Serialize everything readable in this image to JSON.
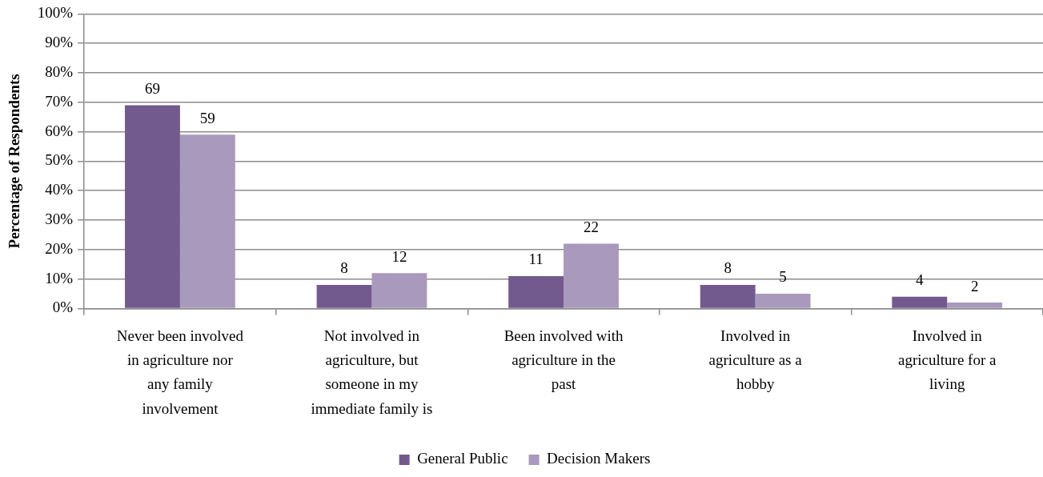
{
  "chart_data": {
    "type": "bar",
    "categories": [
      "Never been involved in agriculture nor any family involvement",
      "Not involved in agriculture, but someone in my immediate family is",
      "Been involved with agriculture in the past",
      "Involved in agriculture as a hobby",
      "Involved in agriculture for a living"
    ],
    "series": [
      {
        "name": "General Public",
        "color": "#725a8e",
        "values": [
          69,
          8,
          11,
          8,
          4
        ]
      },
      {
        "name": "Decision Makers",
        "color": "#a899bd",
        "values": [
          59,
          12,
          22,
          5,
          2
        ]
      }
    ],
    "ylabel": "Percentage of Respondents",
    "ylim": [
      0,
      100
    ],
    "yticks": [
      {
        "value": 0,
        "label": "0%"
      },
      {
        "value": 10,
        "label": "10%"
      },
      {
        "value": 20,
        "label": "20%"
      },
      {
        "value": 30,
        "label": "30%"
      },
      {
        "value": 40,
        "label": "40%"
      },
      {
        "value": 50,
        "label": "50%"
      },
      {
        "value": 60,
        "label": "60%"
      },
      {
        "value": 70,
        "label": "70%"
      },
      {
        "value": 80,
        "label": "80%"
      },
      {
        "value": 90,
        "label": "90%"
      },
      {
        "value": 100,
        "label": "100%"
      }
    ],
    "grid": "y",
    "legend": "bottom",
    "data_labels": true
  }
}
